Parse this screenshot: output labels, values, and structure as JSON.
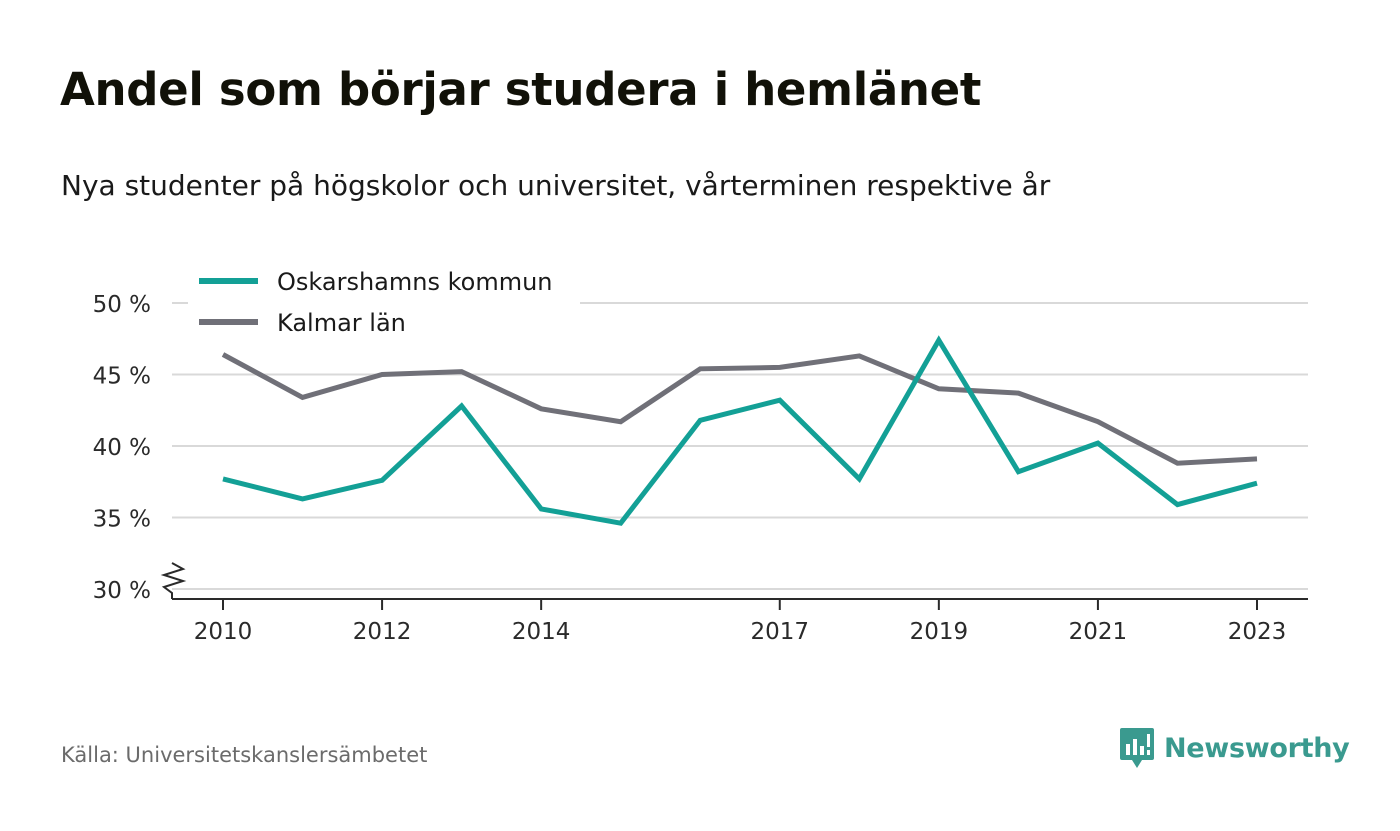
{
  "header": {
    "title": "Andel som börjar studera i hemlänet",
    "subtitle": "Nya studenter på högskolor och universitet, vårterminen respektive år"
  },
  "footer": {
    "source": "Källa: Universitetskanslersämbetet",
    "brand_name": "Newsworthy",
    "brand_color": "#3a9a8f"
  },
  "chart_data": {
    "type": "line",
    "x": [
      2010,
      2011,
      2012,
      2013,
      2014,
      2015,
      2016,
      2017,
      2018,
      2019,
      2020,
      2021,
      2022,
      2023
    ],
    "x_tick_values": [
      2010,
      2012,
      2014,
      2017,
      2019,
      2021,
      2023
    ],
    "x_tick_labels": [
      "2010",
      "2012",
      "2014",
      "2017",
      "2019",
      "2021",
      "2023"
    ],
    "y_tick_values": [
      30,
      35,
      40,
      45,
      50
    ],
    "y_tick_labels": [
      "30 %",
      "35 %",
      "40 %",
      "45 %",
      "50 %"
    ],
    "ylim": [
      30,
      50
    ],
    "y_axis_break": true,
    "grid": true,
    "legend_position": "top-left",
    "series": [
      {
        "name": "Oskarshamns kommun",
        "color": "#13a096",
        "values": [
          37.7,
          36.3,
          37.6,
          42.8,
          35.6,
          34.6,
          41.8,
          43.2,
          37.7,
          47.4,
          38.2,
          40.2,
          35.9,
          37.4
        ]
      },
      {
        "name": "Kalmar län",
        "color": "#707078",
        "values": [
          46.4,
          43.4,
          45.0,
          45.2,
          42.6,
          41.7,
          45.4,
          45.5,
          46.3,
          44.0,
          43.7,
          41.7,
          38.8,
          39.1
        ]
      }
    ]
  }
}
